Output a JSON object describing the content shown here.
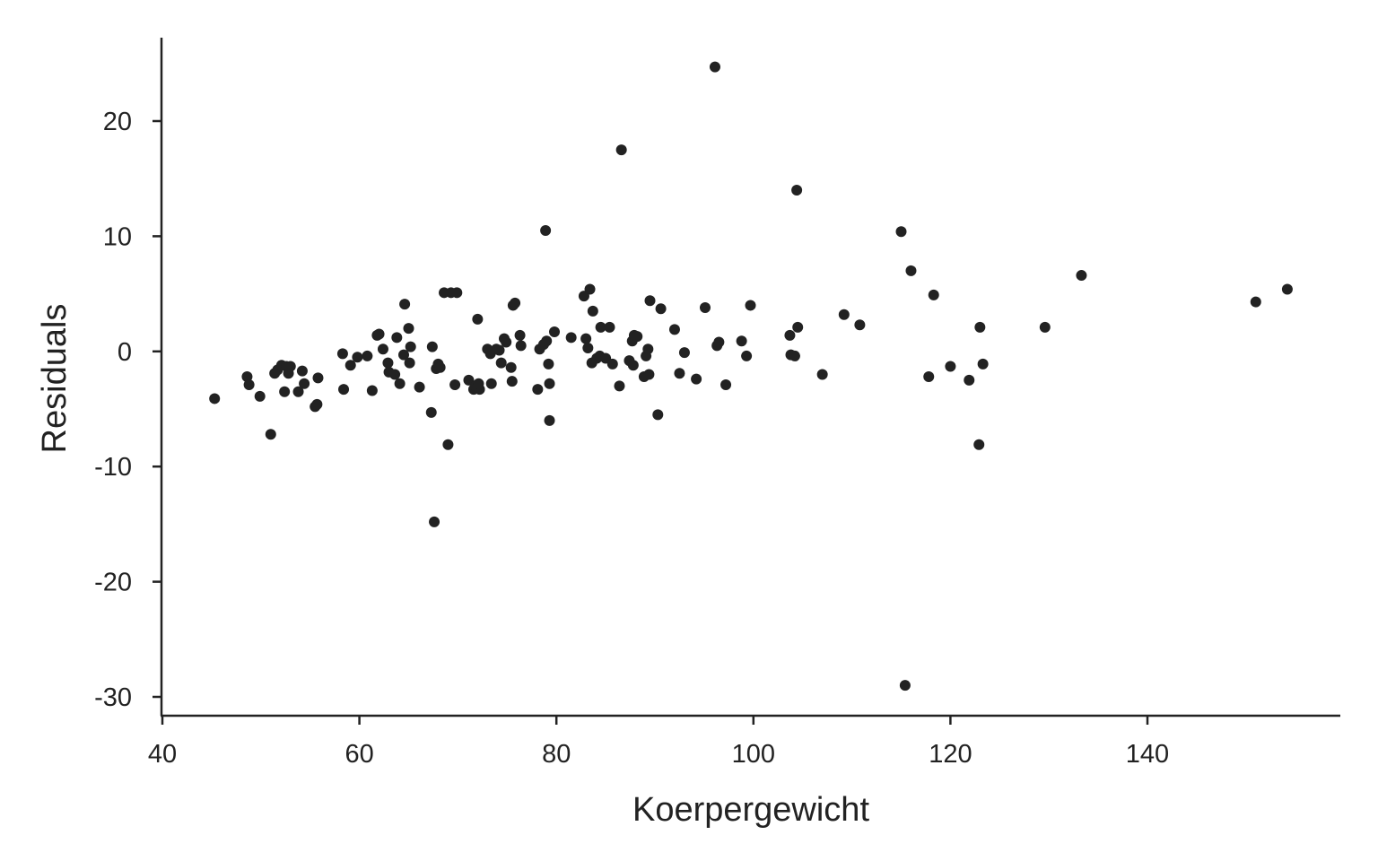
{
  "chart_data": {
    "type": "scatter",
    "title": "",
    "xlabel": "Koerpergewicht",
    "ylabel": "Residuals",
    "xlim": [
      40,
      159.5
    ],
    "ylim": [
      -31.5,
      27.5
    ],
    "xticks": [
      40,
      60,
      80,
      100,
      120,
      140
    ],
    "yticks": [
      -30,
      -20,
      -10,
      0,
      10,
      20
    ],
    "xtick_labels": [
      "40",
      "60",
      "80",
      "100",
      "120",
      "140"
    ],
    "ytick_labels": [
      "-30",
      "-20",
      "-10",
      "0",
      "10",
      "20"
    ],
    "grid": false,
    "legend": "none",
    "point_color": "#222222",
    "axis_color": "#222222",
    "points": [
      {
        "x": 45.3,
        "y": -4.1
      },
      {
        "x": 48.6,
        "y": -2.2
      },
      {
        "x": 48.8,
        "y": -2.9
      },
      {
        "x": 49.9,
        "y": -3.9
      },
      {
        "x": 51.0,
        "y": -7.2
      },
      {
        "x": 51.4,
        "y": -1.9
      },
      {
        "x": 51.7,
        "y": -1.6
      },
      {
        "x": 52.1,
        "y": -1.2
      },
      {
        "x": 52.4,
        "y": -3.5
      },
      {
        "x": 52.6,
        "y": -1.3
      },
      {
        "x": 52.8,
        "y": -1.9
      },
      {
        "x": 53.0,
        "y": -1.3
      },
      {
        "x": 53.8,
        "y": -3.5
      },
      {
        "x": 54.2,
        "y": -1.7
      },
      {
        "x": 54.4,
        "y": -2.8
      },
      {
        "x": 55.5,
        "y": -4.8
      },
      {
        "x": 55.7,
        "y": -4.6
      },
      {
        "x": 55.8,
        "y": -2.3
      },
      {
        "x": 58.3,
        "y": -0.2
      },
      {
        "x": 58.4,
        "y": -3.3
      },
      {
        "x": 59.1,
        "y": -1.2
      },
      {
        "x": 59.8,
        "y": -0.5
      },
      {
        "x": 60.8,
        "y": -0.4
      },
      {
        "x": 61.3,
        "y": -3.4
      },
      {
        "x": 61.8,
        "y": 1.4
      },
      {
        "x": 62.0,
        "y": 1.5
      },
      {
        "x": 62.4,
        "y": 0.2
      },
      {
        "x": 62.9,
        "y": -1.0
      },
      {
        "x": 63.0,
        "y": -1.8
      },
      {
        "x": 63.6,
        "y": -2.0
      },
      {
        "x": 63.8,
        "y": 1.2
      },
      {
        "x": 64.1,
        "y": -2.8
      },
      {
        "x": 64.5,
        "y": -0.3
      },
      {
        "x": 64.6,
        "y": 4.1
      },
      {
        "x": 65.0,
        "y": 2.0
      },
      {
        "x": 65.1,
        "y": -1.0
      },
      {
        "x": 65.2,
        "y": 0.4
      },
      {
        "x": 66.1,
        "y": -3.1
      },
      {
        "x": 67.3,
        "y": -5.3
      },
      {
        "x": 67.4,
        "y": 0.4
      },
      {
        "x": 67.6,
        "y": -14.8
      },
      {
        "x": 67.8,
        "y": -1.5
      },
      {
        "x": 68.0,
        "y": -1.1
      },
      {
        "x": 68.2,
        "y": -1.4
      },
      {
        "x": 68.6,
        "y": 5.1
      },
      {
        "x": 69.0,
        "y": -8.1
      },
      {
        "x": 69.3,
        "y": 5.1
      },
      {
        "x": 69.7,
        "y": -2.9
      },
      {
        "x": 69.9,
        "y": 5.1
      },
      {
        "x": 71.1,
        "y": -2.5
      },
      {
        "x": 71.6,
        "y": -3.3
      },
      {
        "x": 71.8,
        "y": -3.0
      },
      {
        "x": 72.0,
        "y": 2.8
      },
      {
        "x": 72.2,
        "y": -3.3
      },
      {
        "x": 72.1,
        "y": -2.8
      },
      {
        "x": 73.0,
        "y": 0.2
      },
      {
        "x": 73.3,
        "y": -0.2
      },
      {
        "x": 73.4,
        "y": -2.8
      },
      {
        "x": 73.9,
        "y": 0.2
      },
      {
        "x": 74.2,
        "y": 0.1
      },
      {
        "x": 74.4,
        "y": -1.0
      },
      {
        "x": 74.7,
        "y": 1.1
      },
      {
        "x": 74.9,
        "y": 0.8
      },
      {
        "x": 75.4,
        "y": -1.4
      },
      {
        "x": 75.5,
        "y": -2.6
      },
      {
        "x": 75.6,
        "y": 4.0
      },
      {
        "x": 75.8,
        "y": 4.2
      },
      {
        "x": 76.3,
        "y": 1.4
      },
      {
        "x": 76.4,
        "y": 0.5
      },
      {
        "x": 78.1,
        "y": -3.3
      },
      {
        "x": 78.3,
        "y": 0.2
      },
      {
        "x": 78.7,
        "y": 0.6
      },
      {
        "x": 78.9,
        "y": 10.5
      },
      {
        "x": 79.0,
        "y": 0.9
      },
      {
        "x": 79.2,
        "y": -1.1
      },
      {
        "x": 79.3,
        "y": -6.0
      },
      {
        "x": 79.3,
        "y": -2.8
      },
      {
        "x": 79.8,
        "y": 1.7
      },
      {
        "x": 81.5,
        "y": 1.2
      },
      {
        "x": 82.8,
        "y": 4.8
      },
      {
        "x": 83.0,
        "y": 1.1
      },
      {
        "x": 83.2,
        "y": 0.3
      },
      {
        "x": 83.4,
        "y": 5.4
      },
      {
        "x": 83.6,
        "y": -1.0
      },
      {
        "x": 83.7,
        "y": 3.5
      },
      {
        "x": 84.1,
        "y": -0.6
      },
      {
        "x": 84.4,
        "y": -0.4
      },
      {
        "x": 84.5,
        "y": 2.1
      },
      {
        "x": 85.0,
        "y": -0.6
      },
      {
        "x": 85.4,
        "y": 2.1
      },
      {
        "x": 85.7,
        "y": -1.1
      },
      {
        "x": 86.4,
        "y": -3.0
      },
      {
        "x": 86.6,
        "y": 17.5
      },
      {
        "x": 87.4,
        "y": -0.8
      },
      {
        "x": 87.7,
        "y": 0.9
      },
      {
        "x": 87.8,
        "y": -1.2
      },
      {
        "x": 87.9,
        "y": 1.4
      },
      {
        "x": 88.2,
        "y": 1.3
      },
      {
        "x": 88.9,
        "y": -2.2
      },
      {
        "x": 89.1,
        "y": -0.4
      },
      {
        "x": 89.3,
        "y": 0.2
      },
      {
        "x": 89.4,
        "y": -2.0
      },
      {
        "x": 89.5,
        "y": 4.4
      },
      {
        "x": 90.3,
        "y": -5.5
      },
      {
        "x": 90.6,
        "y": 3.7
      },
      {
        "x": 92.0,
        "y": 1.9
      },
      {
        "x": 92.5,
        "y": -1.9
      },
      {
        "x": 93.0,
        "y": -0.1
      },
      {
        "x": 94.2,
        "y": -2.4
      },
      {
        "x": 95.1,
        "y": 3.8
      },
      {
        "x": 96.1,
        "y": 24.7
      },
      {
        "x": 96.3,
        "y": 0.5
      },
      {
        "x": 96.5,
        "y": 0.8
      },
      {
        "x": 97.2,
        "y": -2.9
      },
      {
        "x": 98.8,
        "y": 0.9
      },
      {
        "x": 99.3,
        "y": -0.4
      },
      {
        "x": 99.7,
        "y": 4.0
      },
      {
        "x": 103.7,
        "y": 1.4
      },
      {
        "x": 103.8,
        "y": -0.3
      },
      {
        "x": 104.2,
        "y": -0.4
      },
      {
        "x": 104.4,
        "y": 14.0
      },
      {
        "x": 104.5,
        "y": 2.1
      },
      {
        "x": 107.0,
        "y": -2.0
      },
      {
        "x": 109.2,
        "y": 3.2
      },
      {
        "x": 110.8,
        "y": 2.3
      },
      {
        "x": 115.0,
        "y": 10.4
      },
      {
        "x": 115.4,
        "y": -29.0
      },
      {
        "x": 116.0,
        "y": 7.0
      },
      {
        "x": 117.8,
        "y": -2.2
      },
      {
        "x": 118.3,
        "y": 4.9
      },
      {
        "x": 120.0,
        "y": -1.3
      },
      {
        "x": 121.9,
        "y": -2.5
      },
      {
        "x": 122.9,
        "y": -8.1
      },
      {
        "x": 123.0,
        "y": 2.1
      },
      {
        "x": 123.3,
        "y": -1.1
      },
      {
        "x": 129.6,
        "y": 2.1
      },
      {
        "x": 133.3,
        "y": 6.6
      },
      {
        "x": 151.0,
        "y": 4.3
      },
      {
        "x": 154.2,
        "y": 5.4
      }
    ]
  }
}
